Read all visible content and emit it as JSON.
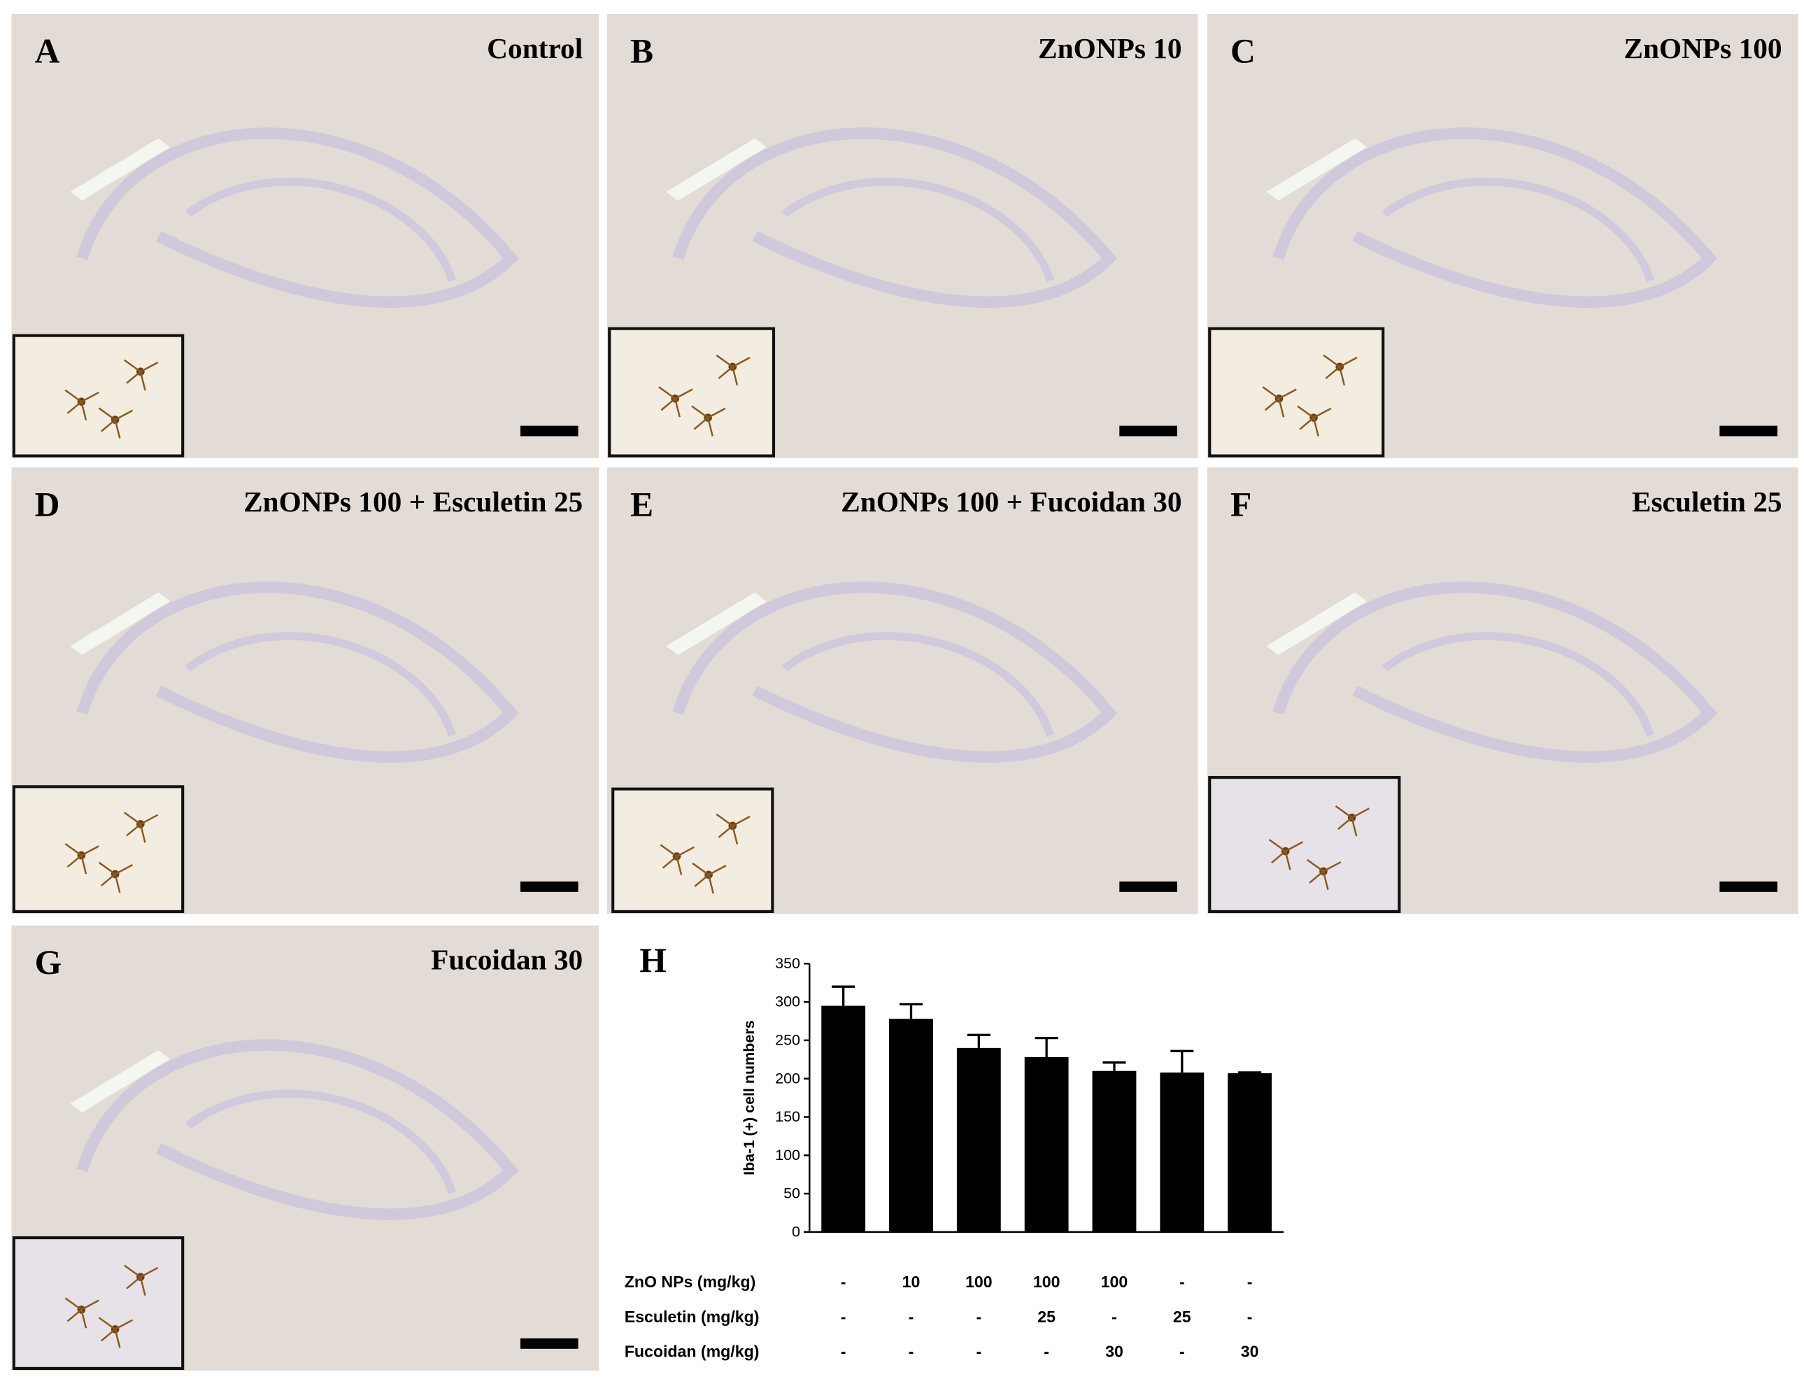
{
  "panels": [
    {
      "letter": "A",
      "title": "Control"
    },
    {
      "letter": "B",
      "title": "ZnONPs 10"
    },
    {
      "letter": "C",
      "title": "ZnONPs 100"
    },
    {
      "letter": "D",
      "title": "ZnONPs 100 + Esculetin 25"
    },
    {
      "letter": "E",
      "title": "ZnONPs 100 + Fucoidan 30"
    },
    {
      "letter": "F",
      "title": "Esculetin 25"
    },
    {
      "letter": "G",
      "title": "Fucoidan 30"
    }
  ],
  "chart_data": {
    "type": "bar",
    "letter": "H",
    "y_label": "Iba-1 (+) cell numbers",
    "values": [
      295,
      278,
      240,
      228,
      210,
      208,
      207
    ],
    "errors": [
      25,
      19,
      17,
      25,
      11,
      28,
      1
    ],
    "color": "#000000",
    "ylim": [
      0,
      350
    ],
    "yticks": [
      0,
      50,
      100,
      150,
      200,
      250,
      300,
      350
    ],
    "treatments": [
      {
        "name": "ZnO NPs (mg/kg)",
        "values": [
          "-",
          "10",
          "100",
          "100",
          "100",
          "-",
          "-"
        ]
      },
      {
        "name": "Esculetin (mg/kg)",
        "values": [
          "-",
          "-",
          "-",
          "25",
          "-",
          "25",
          "-"
        ]
      },
      {
        "name": "Fucoidan (mg/kg)",
        "values": [
          "-",
          "-",
          "-",
          "-",
          "30",
          "-",
          "30"
        ]
      }
    ]
  }
}
